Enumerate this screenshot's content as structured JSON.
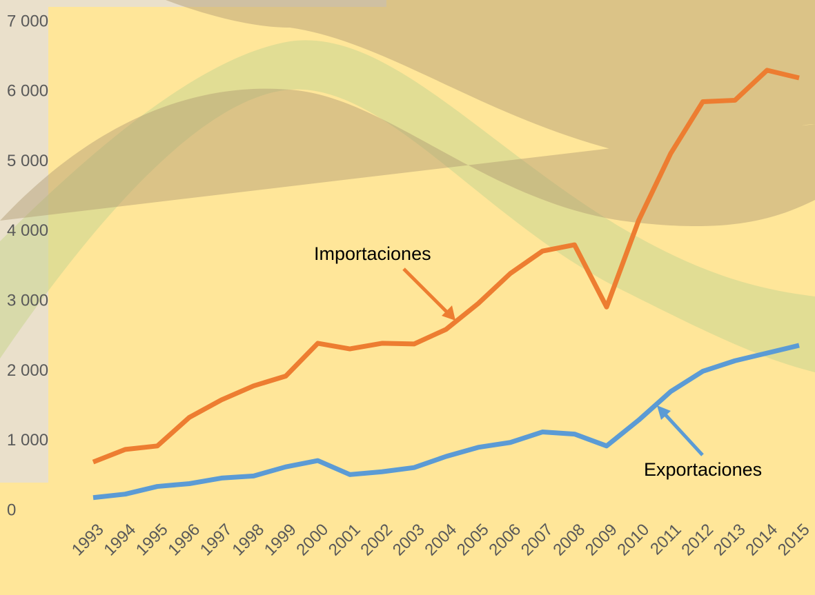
{
  "chart_data": {
    "type": "line",
    "categories": [
      "1993",
      "1994",
      "1995",
      "1996",
      "1997",
      "1998",
      "1999",
      "2000",
      "2001",
      "2002",
      "2003",
      "2004",
      "2005",
      "2006",
      "2007",
      "2008",
      "2009",
      "2010",
      "2011",
      "2012",
      "2013",
      "2014",
      "2015"
    ],
    "series": [
      {
        "name": "Importaciones",
        "color": "#ed7d31",
        "values": [
          700,
          880,
          930,
          1340,
          1590,
          1790,
          1930,
          2400,
          2320,
          2400,
          2390,
          2600,
          2970,
          3400,
          3720,
          3810,
          2920,
          4160,
          5120,
          5860,
          5880,
          6310,
          6200
        ]
      },
      {
        "name": "Exportaciones",
        "color": "#5b9bd5",
        "values": [
          190,
          240,
          350,
          390,
          470,
          500,
          630,
          720,
          520,
          560,
          620,
          780,
          910,
          980,
          1130,
          1100,
          930,
          1300,
          1710,
          2000,
          2150,
          2260,
          2370
        ]
      }
    ],
    "ylim": [
      0,
      7000
    ],
    "yticks": [
      0,
      {
        "value": 1000,
        "label": "1 000"
      },
      {
        "value": 2000,
        "label": "2 000"
      },
      {
        "value": 3000,
        "label": "3 000"
      },
      {
        "value": 4000,
        "label": "4 000"
      },
      {
        "value": 5000,
        "label": "5 000"
      },
      {
        "value": 6000,
        "label": "6 000"
      },
      {
        "value": 7000,
        "label": "7 000"
      }
    ],
    "grid": false
  }
}
